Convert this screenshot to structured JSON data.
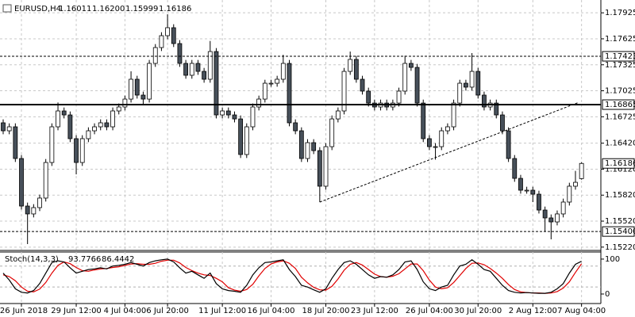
{
  "chart_data": [
    {
      "type": "candlestick",
      "header": {
        "symbol": "EURUSD,H4",
        "ohlc_labels": [
          "1.16011",
          "1.16200",
          "1.15999",
          "1.16186"
        ]
      },
      "categories": [
        null,
        null,
        null,
        "26 Jun 2018",
        null,
        null,
        null,
        null,
        null,
        null,
        null,
        null,
        "29 Jun 12:00",
        null,
        null,
        null,
        null,
        null,
        null,
        null,
        "4 Jul 04:00",
        null,
        null,
        null,
        null,
        null,
        null,
        "6 Jul 20:00",
        null,
        null,
        null,
        null,
        null,
        null,
        null,
        null,
        "11 Jul 12:00",
        null,
        null,
        null,
        null,
        null,
        null,
        null,
        "16 Jul 04:00",
        null,
        null,
        null,
        null,
        null,
        null,
        null,
        null,
        "18 Jul 20:00",
        null,
        null,
        null,
        null,
        null,
        null,
        null,
        "23 Jul 12:00",
        null,
        null,
        null,
        null,
        null,
        null,
        null,
        null,
        "26 Jul 04:00",
        null,
        null,
        null,
        null,
        null,
        null,
        null,
        "30 Jul 20:00",
        null,
        null,
        null,
        null,
        null,
        null,
        null,
        null,
        "2 Aug 12:00",
        null,
        null,
        null,
        null,
        null,
        null,
        null,
        "7 Aug 04:00"
      ],
      "ohlc": [
        [
          1.16655,
          1.16695,
          1.16523,
          1.16563
        ],
        [
          1.16563,
          1.16649,
          1.16523,
          1.16609
        ],
        [
          1.16609,
          1.16649,
          1.16203,
          1.16243
        ],
        [
          1.16243,
          1.16283,
          1.15654,
          1.15694
        ],
        [
          1.15694,
          1.15734,
          1.15255,
          1.15603
        ],
        [
          1.15603,
          1.15716,
          1.15563,
          1.15676
        ],
        [
          1.15676,
          1.15826,
          1.15636,
          1.15786
        ],
        [
          1.15786,
          1.16237,
          1.15746,
          1.16197
        ],
        [
          1.16197,
          1.16649,
          1.16157,
          1.16609
        ],
        [
          1.16609,
          1.1689,
          1.16569,
          1.16792
        ],
        [
          1.16792,
          1.16832,
          1.16706,
          1.16746
        ],
        [
          1.16746,
          1.16786,
          1.16432,
          1.16472
        ],
        [
          1.16472,
          1.16512,
          1.1606,
          1.16197
        ],
        [
          1.16197,
          1.16512,
          1.16157,
          1.16472
        ],
        [
          1.16472,
          1.16603,
          1.16432,
          1.16563
        ],
        [
          1.16563,
          1.16649,
          1.16523,
          1.16609
        ],
        [
          1.16609,
          1.16695,
          1.16569,
          1.16655
        ],
        [
          1.16655,
          1.16695,
          1.16569,
          1.16609
        ],
        [
          1.16609,
          1.16832,
          1.16569,
          1.16792
        ],
        [
          1.16792,
          1.16878,
          1.16752,
          1.16838
        ],
        [
          1.16838,
          1.16969,
          1.16798,
          1.16929
        ],
        [
          1.16929,
          1.1725,
          1.16889,
          1.17158
        ],
        [
          1.17158,
          1.17198,
          1.16935,
          1.16975
        ],
        [
          1.16975,
          1.17015,
          1.1686,
          1.16929
        ],
        [
          1.16929,
          1.17381,
          1.16889,
          1.17341
        ],
        [
          1.17341,
          1.17564,
          1.17301,
          1.17524
        ],
        [
          1.17524,
          1.17701,
          1.17484,
          1.17661
        ],
        [
          1.17661,
          1.17908,
          1.17621,
          1.17753
        ],
        [
          1.17753,
          1.17793,
          1.1753,
          1.1757
        ],
        [
          1.1757,
          1.1761,
          1.17301,
          1.17341
        ],
        [
          1.17341,
          1.17381,
          1.17164,
          1.17204
        ],
        [
          1.17204,
          1.17381,
          1.17164,
          1.17341
        ],
        [
          1.17341,
          1.17381,
          1.17209,
          1.17249
        ],
        [
          1.17249,
          1.17289,
          1.17118,
          1.17158
        ],
        [
          1.17158,
          1.176,
          1.17118,
          1.17478
        ],
        [
          1.17478,
          1.17518,
          1.16706,
          1.16746
        ],
        [
          1.16746,
          1.16832,
          1.16706,
          1.16792
        ],
        [
          1.16792,
          1.16832,
          1.16706,
          1.16746
        ],
        [
          1.16746,
          1.16786,
          1.1666,
          1.167
        ],
        [
          1.167,
          1.1674,
          1.16249,
          1.16289
        ],
        [
          1.16289,
          1.16649,
          1.16249,
          1.16609
        ],
        [
          1.16609,
          1.16878,
          1.16569,
          1.16838
        ],
        [
          1.16838,
          1.16969,
          1.16798,
          1.16929
        ],
        [
          1.16929,
          1.17152,
          1.16889,
          1.17112
        ],
        [
          1.17112,
          1.17152,
          1.17072,
          1.17112
        ],
        [
          1.17112,
          1.17198,
          1.17072,
          1.17158
        ],
        [
          1.17158,
          1.1744,
          1.17118,
          1.17341
        ],
        [
          1.17341,
          1.17381,
          1.16615,
          1.16655
        ],
        [
          1.16655,
          1.16695,
          1.16523,
          1.16563
        ],
        [
          1.16563,
          1.16603,
          1.16203,
          1.16243
        ],
        [
          1.16243,
          1.16466,
          1.16203,
          1.16426
        ],
        [
          1.16426,
          1.16466,
          1.16294,
          1.16334
        ],
        [
          1.16334,
          1.16374,
          1.1574,
          1.15923
        ],
        [
          1.15923,
          1.1642,
          1.15883,
          1.1638
        ],
        [
          1.1638,
          1.1674,
          1.1634,
          1.167
        ],
        [
          1.167,
          1.16832,
          1.1666,
          1.16792
        ],
        [
          1.16792,
          1.17289,
          1.16752,
          1.17249
        ],
        [
          1.17249,
          1.17478,
          1.17209,
          1.17387
        ],
        [
          1.17387,
          1.17427,
          1.17118,
          1.17158
        ],
        [
          1.17158,
          1.17198,
          1.16981,
          1.17021
        ],
        [
          1.17021,
          1.17061,
          1.16843,
          1.16883
        ],
        [
          1.16883,
          1.16923,
          1.16798,
          1.16838
        ],
        [
          1.16838,
          1.16923,
          1.16798,
          1.16883
        ],
        [
          1.16883,
          1.16923,
          1.16798,
          1.16838
        ],
        [
          1.16838,
          1.16923,
          1.16798,
          1.16883
        ],
        [
          1.16883,
          1.17061,
          1.16843,
          1.17021
        ],
        [
          1.17021,
          1.1743,
          1.16981,
          1.17341
        ],
        [
          1.17341,
          1.17381,
          1.17255,
          1.17295
        ],
        [
          1.17295,
          1.17335,
          1.16843,
          1.16883
        ],
        [
          1.16883,
          1.16923,
          1.16432,
          1.16472
        ],
        [
          1.16472,
          1.16512,
          1.1634,
          1.1638
        ],
        [
          1.1638,
          1.1642,
          1.1623,
          1.1638
        ],
        [
          1.1638,
          1.16603,
          1.1634,
          1.16563
        ],
        [
          1.16563,
          1.16649,
          1.16523,
          1.16609
        ],
        [
          1.16609,
          1.16923,
          1.16569,
          1.16883
        ],
        [
          1.16883,
          1.17152,
          1.16843,
          1.17112
        ],
        [
          1.17112,
          1.17152,
          1.17027,
          1.17067
        ],
        [
          1.17067,
          1.1746,
          1.17027,
          1.17249
        ],
        [
          1.17249,
          1.17289,
          1.16935,
          1.16975
        ],
        [
          1.16975,
          1.17015,
          1.16798,
          1.16838
        ],
        [
          1.16838,
          1.16923,
          1.16798,
          1.16883
        ],
        [
          1.16883,
          1.16923,
          1.16706,
          1.16746
        ],
        [
          1.16746,
          1.16786,
          1.16523,
          1.16563
        ],
        [
          1.16563,
          1.16603,
          1.16203,
          1.16243
        ],
        [
          1.16243,
          1.16283,
          1.15974,
          1.16014
        ],
        [
          1.16014,
          1.16054,
          1.15837,
          1.15877
        ],
        [
          1.15877,
          1.15917,
          1.15837,
          1.15877
        ],
        [
          1.15877,
          1.15917,
          1.1574,
          1.15831
        ],
        [
          1.15831,
          1.15871,
          1.15608,
          1.15648
        ],
        [
          1.15648,
          1.15688,
          1.154,
          1.15557
        ],
        [
          1.15557,
          1.15597,
          1.1531,
          1.15511
        ],
        [
          1.15511,
          1.15643,
          1.15471,
          1.15603
        ],
        [
          1.15603,
          1.1578,
          1.15563,
          1.1574
        ],
        [
          1.1574,
          1.15963,
          1.157,
          1.15923
        ],
        [
          1.15923,
          1.161,
          1.15883,
          1.15968
        ],
        [
          1.16011,
          1.162,
          1.15999,
          1.16186
        ]
      ],
      "up_color": "#ffffff",
      "down_color": "#47505a",
      "ylim": [
        1.152,
        1.18073
      ],
      "yticks": [
        1.17925,
        1.17625,
        1.17325,
        1.17025,
        1.16725,
        {
          "value": 1.1642,
          "label": "1.16420"
        },
        {
          "value": 1.1612,
          "label": "1.16120"
        },
        {
          "value": 1.1582,
          "label": "1.15820"
        },
        {
          "value": 1.1552,
          "label": "1.15520"
        },
        {
          "value": 1.1522,
          "label": "1.15220"
        }
      ],
      "grid": true,
      "levels": {
        "values": [
          1.17423,
          1.16865,
          1.154
        ],
        "value_labels": [
          "1.17423",
          "1.16865",
          "1.15400"
        ],
        "styles": [
          "dashed",
          "solid",
          "dashed"
        ]
      },
      "trendline": [
        [
          52,
          1.1574
        ],
        [
          94.5,
          1.1689
        ]
      ]
    },
    {
      "type": "line",
      "title": "Stoch(14,3,3)",
      "value_labels": [
        "93.7766",
        "86.4442"
      ],
      "series": [
        {
          "color": "#000000",
          "values": [
            60,
            40,
            15,
            5,
            3,
            10,
            30,
            60,
            90,
            95,
            92,
            75,
            60,
            65,
            70,
            72,
            75,
            72,
            80,
            82,
            85,
            90,
            85,
            80,
            90,
            95,
            98,
            100,
            92,
            75,
            60,
            65,
            55,
            45,
            60,
            30,
            15,
            10,
            8,
            5,
            25,
            55,
            75,
            90,
            92,
            95,
            98,
            70,
            50,
            25,
            20,
            12,
            5,
            15,
            45,
            70,
            90,
            95,
            85,
            70,
            55,
            45,
            50,
            48,
            55,
            70,
            92,
            95,
            70,
            35,
            15,
            10,
            20,
            25,
            55,
            80,
            85,
            98,
            85,
            70,
            65,
            45,
            25,
            10,
            5,
            3,
            4,
            3,
            2,
            2,
            5,
            15,
            30,
            60,
            85,
            93.7766
          ]
        },
        {
          "color": "#e00000",
          "values": [
            55,
            50,
            38,
            20,
            8,
            6,
            14,
            33,
            60,
            82,
            92,
            87,
            76,
            67,
            65,
            69,
            72,
            73,
            76,
            78,
            82,
            86,
            87,
            85,
            85,
            88,
            94,
            97,
            97,
            89,
            76,
            67,
            60,
            55,
            53,
            45,
            35,
            18,
            11,
            8,
            13,
            28,
            52,
            73,
            86,
            92,
            95,
            88,
            73,
            48,
            32,
            19,
            12,
            11,
            22,
            43,
            68,
            85,
            90,
            83,
            70,
            57,
            50,
            48,
            51,
            58,
            72,
            86,
            86,
            67,
            40,
            20,
            15,
            18,
            33,
            53,
            73,
            88,
            89,
            84,
            73,
            60,
            45,
            27,
            13,
            6,
            4,
            3,
            3,
            2,
            3,
            7,
            17,
            35,
            62,
            86.4442
          ]
        }
      ],
      "ylim": [
        -25,
        118
      ],
      "yticks": [
        0,
        100
      ],
      "levels": [
        80,
        20
      ]
    }
  ]
}
